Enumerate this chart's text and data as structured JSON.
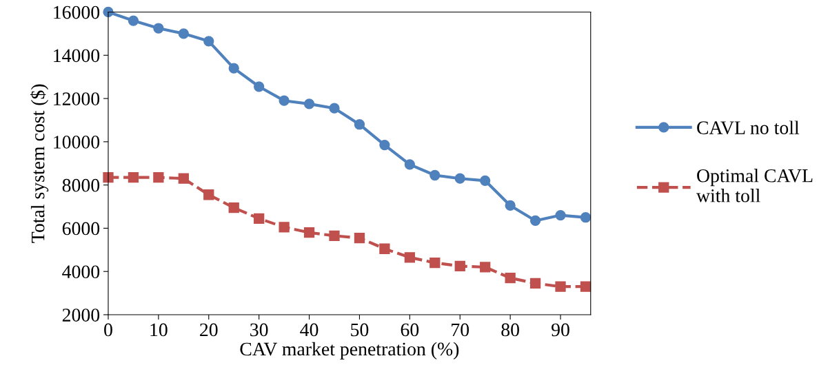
{
  "chart_data": {
    "type": "line",
    "xlabel": "CAV market penetration (%)",
    "ylabel": "Total system cost ($)",
    "x": [
      0,
      5,
      10,
      15,
      20,
      25,
      30,
      35,
      40,
      45,
      50,
      55,
      60,
      65,
      70,
      75,
      80,
      85,
      90,
      95
    ],
    "series": [
      {
        "name": "CAVL no toll",
        "color": "#4f81bd",
        "marker": "circle",
        "line_style": "solid",
        "values": [
          16000,
          15600,
          15250,
          15000,
          14650,
          13400,
          12550,
          11900,
          11750,
          11550,
          10800,
          9850,
          8950,
          8450,
          8300,
          8200,
          7050,
          6350,
          6600,
          6500
        ]
      },
      {
        "name": "Optimal CAVL\nwith toll",
        "color": "#c0504d",
        "marker": "square",
        "line_style": "dashed",
        "values": [
          8350,
          8350,
          8350,
          8300,
          7550,
          6950,
          6450,
          6050,
          5800,
          5650,
          5550,
          5050,
          4650,
          4400,
          4250,
          4200,
          3700,
          3450,
          3300,
          3300
        ]
      }
    ],
    "xlim": [
      0,
      96
    ],
    "xticks": [
      0,
      10,
      20,
      30,
      40,
      50,
      60,
      70,
      80,
      90
    ],
    "ylim": [
      2000,
      16000
    ],
    "yticks": [
      2000,
      4000,
      6000,
      8000,
      10000,
      12000,
      14000,
      16000
    ],
    "grid": false,
    "legend": "right"
  }
}
